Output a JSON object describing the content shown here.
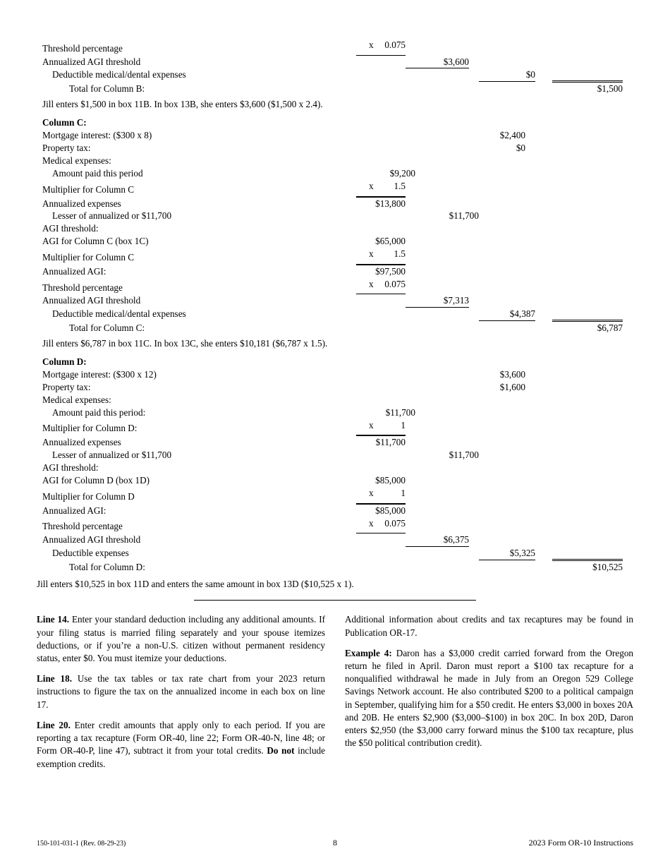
{
  "section_top": {
    "rows": [
      {
        "label": "Threshold percentage",
        "c1_mult": {
          "x": "x",
          "n": "0.075"
        },
        "c1_ul": true
      },
      {
        "label": "Annualized AGI threshold",
        "c2": "$3,600",
        "c2_ul": true
      },
      {
        "label": "Deductible medical/dental expenses",
        "indent": 1,
        "c3": "$0",
        "c3_ul": true
      },
      {
        "label": "Total for Column B:",
        "indent": 2,
        "c4": "$1,500",
        "c4_dt": true
      }
    ],
    "note": "Jill enters $1,500 in box 11B. In box 13B, she enters $3,600 ($1,500 x 2.4)."
  },
  "column_c": {
    "heading": "Column C:",
    "rows": [
      {
        "label": "Mortgage interest: ($300 x 8)",
        "c3": "$2,400"
      },
      {
        "label": "Property tax:",
        "c3": "$0"
      },
      {
        "label": "Medical expenses:"
      },
      {
        "label": "Amount paid this period",
        "indent": 1,
        "c1": "$9,200"
      },
      {
        "label": "Multiplier for Column C",
        "c1_mult": {
          "x": "x",
          "n": "1.5"
        },
        "c1_ul": true
      },
      {
        "label": "Annualized expenses",
        "c1": "$13,800",
        "c1_ot": true
      },
      {
        "label": "Lesser of annualized or $11,700",
        "indent": 1,
        "c2": "$11,700"
      },
      {
        "label": "AGI threshold:"
      },
      {
        "label": "AGI for Column C (box 1C)",
        "c1": "$65,000"
      },
      {
        "label": "Multiplier for Column C",
        "c1_mult": {
          "x": "x",
          "n": "1.5"
        },
        "c1_ul": true
      },
      {
        "label": "Annualized AGI:",
        "c1": "$97,500",
        "c1_ot": true
      },
      {
        "label": "Threshold percentage",
        "c1_mult": {
          "x": "x",
          "n": "0.075"
        },
        "c1_ul": true
      },
      {
        "label": "Annualized AGI threshold",
        "c2": "$7,313",
        "c2_ul": true
      },
      {
        "label": "Deductible medical/dental expenses",
        "indent": 1,
        "c3": "$4,387",
        "c3_ul": true
      },
      {
        "label": "Total for Column C:",
        "indent": 2,
        "c4": "$6,787",
        "c4_dt": true
      }
    ],
    "note": "Jill enters $6,787 in box 11C. In box 13C, she enters $10,181 ($6,787 x 1.5)."
  },
  "column_d": {
    "heading": "Column D:",
    "rows": [
      {
        "label": "Mortgage interest: ($300 x 12)",
        "c3": "$3,600"
      },
      {
        "label": "Property tax:",
        "c3": "$1,600"
      },
      {
        "label": "Medical expenses:"
      },
      {
        "label": "Amount paid this period:",
        "indent": 1,
        "c1": "$11,700"
      },
      {
        "label": "Multiplier for Column D:",
        "c1_mult": {
          "x": "x",
          "n": "1"
        },
        "c1_ul": true
      },
      {
        "label": "Annualized expenses",
        "c1": "$11,700",
        "c1_ot": true
      },
      {
        "label": "Lesser of annualized or $11,700",
        "indent": 1,
        "c2": "$11,700"
      },
      {
        "label": "AGI threshold:"
      },
      {
        "label": "AGI for Column D (box 1D)",
        "c1": "$85,000"
      },
      {
        "label": "Multiplier for Column D",
        "c1_mult": {
          "x": "x",
          "n": "1"
        },
        "c1_ul": true
      },
      {
        "label": "Annualized AGI:",
        "c1": "$85,000",
        "c1_ot": true
      },
      {
        "label": "Threshold percentage",
        "c1_mult": {
          "x": "x",
          "n": "0.075"
        },
        "c1_ul": true
      },
      {
        "label": "Annualized AGI threshold",
        "c2": "$6,375",
        "c2_ul": true
      },
      {
        "label": "Deductible expenses",
        "indent": 1,
        "c3": "$5,325",
        "c3_ul": true
      },
      {
        "label": "Total for Column D:",
        "indent": 2,
        "c4": "$10,525",
        "c4_dt": true
      }
    ],
    "note": "Jill enters $10,525 in box 11D and enters the same amount in box 13D ($10,525 x 1)."
  },
  "instructions": {
    "left": [
      {
        "lead": "Line 14. ",
        "text": "Enter your standard deduction including any additional amounts. If your filing status is married filing separately and your spouse itemizes deductions, or if you’re a non-U.S. citizen without permanent residency status, enter $0. You must itemize your deductions."
      },
      {
        "lead": "Line 18. ",
        "text": "Use the tax tables or tax rate chart from your 2023 return instructions to figure the tax on the annualized income in each box on line 17."
      },
      {
        "lead": "Line 20. ",
        "text": "Enter credit amounts that apply only to each period. If you are reporting a tax recapture (Form OR-40, line 22; Form OR-40-N, line 48; or Form OR-40-P, line 47), subtract it from your total credits. ",
        "bold_tail": "Do not",
        "tail": " include exemption credits."
      }
    ],
    "right": [
      {
        "plain": "Additional information about credits and tax recaptures may be found in Publication OR-17."
      },
      {
        "lead": "Example 4: ",
        "text": "Daron has a $3,000 credit carried forward from the Oregon return he filed in April. Daron must report a $100 tax recapture for a nonqualified withdrawal he made in July from an Oregon 529 College Savings Network account. He also contributed $200 to a political campaign in September, qualifying him for a $50 credit. He enters $3,000 in boxes 20A and 20B. He enters $2,900 ($3,000–$100) in box 20C. In box 20D, Daron enters $2,950 (the $3,000 carry forward minus the $100 tax recapture, plus the $50 political contribution credit)."
      }
    ]
  },
  "footer": {
    "left": "150-101-031-1 (Rev. 08-29-23)",
    "page": "8",
    "right": "2023 Form OR-10 Instructions"
  }
}
